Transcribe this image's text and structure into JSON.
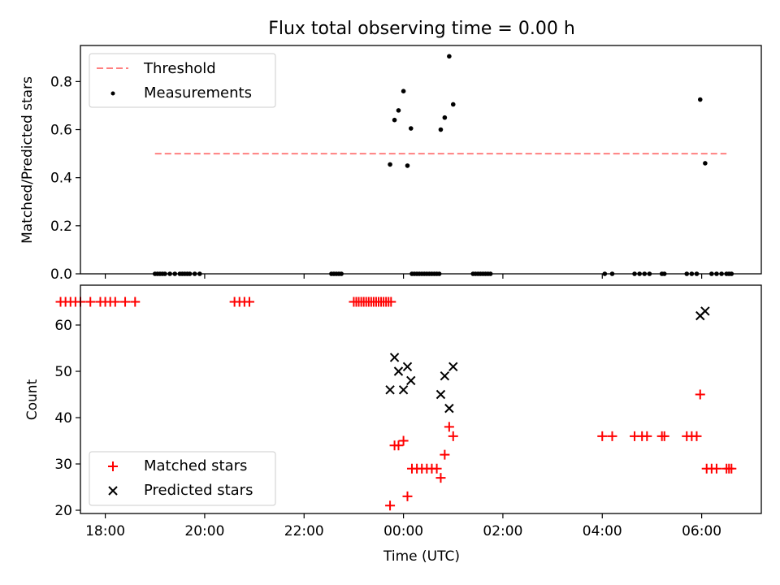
{
  "chart_data": [
    {
      "type": "scatter",
      "title": "Flux total observing time = 0.00 h",
      "xlabel": "",
      "ylabel": "Matched/Predicted stars",
      "xlim": [
        -6.5,
        7.2
      ],
      "ylim": [
        0.0,
        0.95
      ],
      "yticks": [
        0.0,
        0.2,
        0.4,
        0.6,
        0.8
      ],
      "ytick_labels": [
        "0.0",
        "0.2",
        "0.4",
        "0.6",
        "0.8"
      ],
      "legend": {
        "position": "top-left",
        "entries": [
          "Threshold",
          "Measurements"
        ]
      },
      "threshold": {
        "name": "Threshold",
        "value": 0.5,
        "x_range": [
          -5.0,
          6.5
        ],
        "color": "#ff8080"
      },
      "measurements": {
        "name": "Measurements",
        "color": "#000000",
        "x": [
          -5.0,
          -4.95,
          -4.9,
          -4.85,
          -4.8,
          -4.7,
          -4.6,
          -4.5,
          -4.45,
          -4.4,
          -4.35,
          -4.3,
          -4.2,
          -4.1,
          -1.45,
          -1.4,
          -1.35,
          -1.3,
          -1.25,
          0.17,
          0.22,
          0.27,
          0.32,
          0.37,
          0.42,
          0.47,
          0.52,
          0.57,
          0.62,
          0.67,
          0.72,
          1.4,
          1.45,
          1.5,
          1.55,
          1.6,
          1.65,
          1.7,
          1.75,
          4.05,
          4.2,
          4.65,
          4.75,
          4.85,
          4.95,
          5.2,
          5.25,
          5.7,
          5.8,
          5.9,
          6.2,
          6.3,
          6.4,
          6.5,
          6.55,
          6.6,
          -0.27,
          -0.18,
          -0.1,
          0.0,
          0.08,
          0.15,
          0.75,
          0.83,
          0.92,
          1.0,
          5.97,
          6.07
        ],
        "y": [
          0,
          0,
          0,
          0,
          0,
          0,
          0,
          0,
          0,
          0,
          0,
          0,
          0,
          0,
          0,
          0,
          0,
          0,
          0,
          0,
          0,
          0,
          0,
          0,
          0,
          0,
          0,
          0,
          0,
          0,
          0,
          0,
          0,
          0,
          0,
          0,
          0,
          0,
          0,
          0,
          0,
          0,
          0,
          0,
          0,
          0,
          0,
          0,
          0,
          0,
          0,
          0,
          0,
          0,
          0,
          0,
          0.455,
          0.64,
          0.68,
          0.76,
          0.45,
          0.605,
          0.6,
          0.65,
          0.905,
          0.705,
          0.725,
          0.46
        ]
      }
    },
    {
      "type": "scatter",
      "title": "",
      "xlabel": "Time (UTC)",
      "ylabel": "Count",
      "xlim": [
        -6.5,
        7.2
      ],
      "ylim": [
        19.3,
        68.6
      ],
      "yticks": [
        20,
        30,
        40,
        50,
        60
      ],
      "ytick_labels": [
        "20",
        "30",
        "40",
        "50",
        "60"
      ],
      "xticks": [
        -6,
        -4,
        -2,
        0,
        2,
        4,
        6
      ],
      "xtick_labels": [
        "18:00",
        "20:00",
        "22:00",
        "00:00",
        "02:00",
        "04:00",
        "06:00"
      ],
      "legend": {
        "position": "bottom-left",
        "entries": [
          "Matched stars",
          "Predicted stars"
        ]
      },
      "series": [
        {
          "name": "Matched stars",
          "marker": "+",
          "color": "#ff0000",
          "x": [
            -6.9,
            -6.8,
            -6.7,
            -6.6,
            -6.5,
            -6.3,
            -6.1,
            -6.0,
            -5.9,
            -5.8,
            -5.6,
            -5.4,
            -3.4,
            -3.3,
            -3.2,
            -3.1,
            -1.0,
            -0.95,
            -0.9,
            -0.85,
            -0.8,
            -0.75,
            -0.7,
            -0.65,
            -0.6,
            -0.55,
            -0.5,
            -0.45,
            -0.4,
            -0.35,
            -0.3,
            -0.25,
            -0.27,
            -0.18,
            -0.1,
            0.0,
            0.08,
            0.17,
            0.27,
            0.37,
            0.47,
            0.57,
            0.67,
            0.75,
            0.83,
            0.92,
            1.0,
            4.0,
            4.2,
            4.65,
            4.8,
            4.9,
            5.2,
            5.25,
            5.7,
            5.8,
            5.9,
            5.97,
            6.1,
            6.2,
            6.3,
            6.5,
            6.55,
            6.6
          ],
          "y": [
            65,
            65,
            65,
            65,
            65,
            65,
            65,
            65,
            65,
            65,
            65,
            65,
            65,
            65,
            65,
            65,
            65,
            65,
            65,
            65,
            65,
            65,
            65,
            65,
            65,
            65,
            65,
            65,
            65,
            65,
            65,
            65,
            21,
            34,
            34,
            35,
            23,
            29,
            29,
            29,
            29,
            29,
            29,
            27,
            32,
            38,
            36,
            36,
            36,
            36,
            36,
            36,
            36,
            36,
            36,
            36,
            36,
            45,
            29,
            29,
            29,
            29,
            29,
            29
          ]
        },
        {
          "name": "Predicted stars",
          "marker": "x",
          "color": "#000000",
          "x": [
            -0.27,
            -0.18,
            -0.1,
            0.0,
            0.08,
            0.15,
            0.75,
            0.83,
            0.92,
            1.0,
            5.97,
            6.07
          ],
          "y": [
            46,
            53,
            50,
            46,
            51,
            48,
            45,
            49,
            42,
            51,
            62,
            63
          ]
        }
      ]
    }
  ]
}
